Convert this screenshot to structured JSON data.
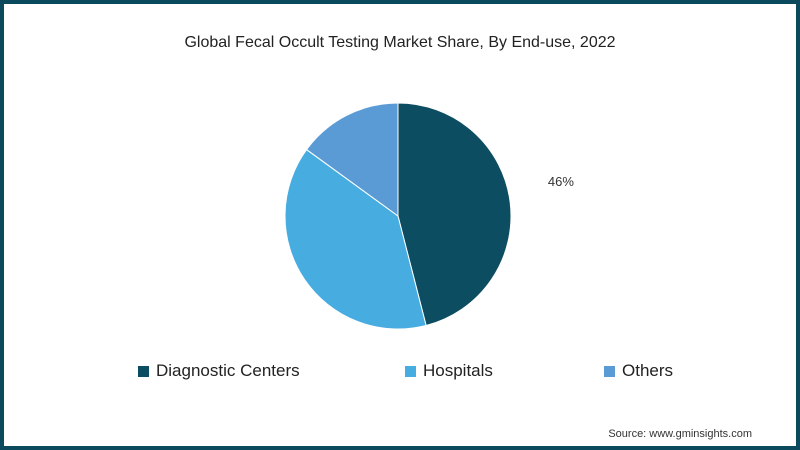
{
  "chart_data": {
    "type": "pie",
    "title": "Global Fecal Occult Testing Market Share, By End-use, 2022",
    "slices": [
      {
        "label": "Diagnostic Centers",
        "value": 46,
        "color": "#0d4d62",
        "data_label": "46%"
      },
      {
        "label": "Hospitals",
        "value": 39,
        "color": "#47ade1",
        "data_label": ""
      },
      {
        "label": "Others",
        "value": 15,
        "color": "#5b9bd5",
        "data_label": ""
      }
    ],
    "legend_position": "bottom",
    "source": "Source: www.gminsights.com"
  }
}
